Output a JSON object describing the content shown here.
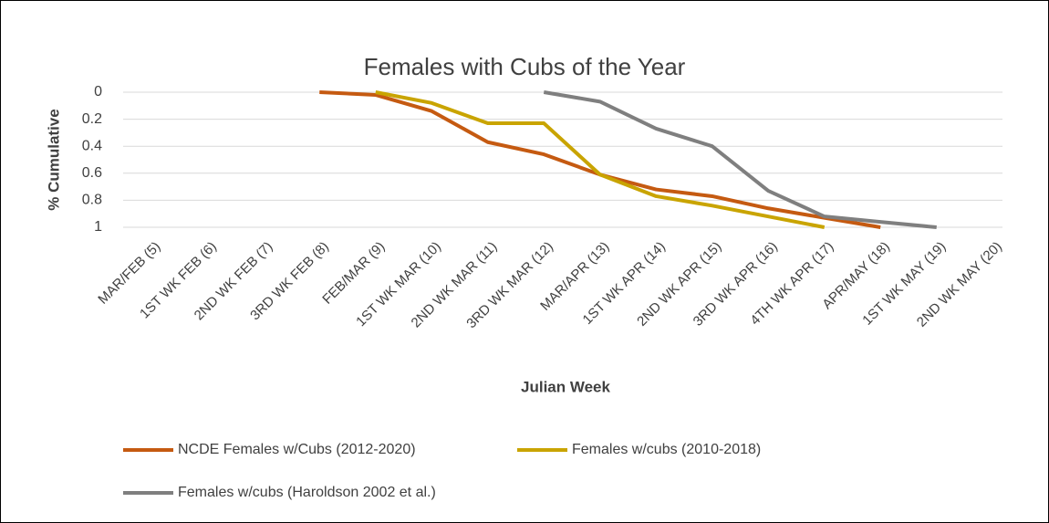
{
  "chart_data": {
    "type": "line",
    "title": "Females with Cubs of the Year",
    "y_label": "% Cumulative",
    "x_label": "Julian Week",
    "categories": [
      "MAR/FEB (5)",
      "1ST WK FEB (6)",
      "2ND WK FEB (7)",
      "3RD WK FEB (8)",
      "FEB/MAR (9)",
      "1ST WK MAR (10)",
      "2ND WK MAR (11)",
      "3RD WK MAR (12)",
      "MAR/APR (13)",
      "1ST WK APR (14)",
      "2ND WK APR (15)",
      "3RD WK APR (16)",
      "4TH WK APR (17)",
      "APR/MAY (18)",
      "1ST WK MAY (19)",
      "2ND WK MAY (20)"
    ],
    "series": [
      {
        "name": "NCDE Females w/Cubs (2012-2020)",
        "color": "#c55a11",
        "values": [
          null,
          null,
          null,
          0,
          0.02,
          0.14,
          0.37,
          0.46,
          0.61,
          0.72,
          0.77,
          0.86,
          0.93,
          1,
          null,
          null
        ]
      },
      {
        "name": "Females w/cubs (2010-2018)",
        "color": "#c9a400",
        "values": [
          null,
          null,
          null,
          null,
          0,
          0.08,
          0.23,
          0.23,
          0.61,
          0.77,
          0.84,
          0.92,
          1,
          null,
          null,
          null
        ]
      },
      {
        "name": "Females w/cubs (Haroldson 2002 et al.)",
        "color": "#7f7f7f",
        "values": [
          null,
          null,
          null,
          null,
          null,
          null,
          null,
          0,
          0.07,
          0.27,
          0.4,
          0.73,
          0.92,
          0.96,
          1,
          null
        ]
      }
    ],
    "ylim": [
      0,
      1
    ],
    "yticks": [
      0,
      0.2,
      0.4,
      0.6,
      0.8,
      1
    ],
    "y_reversed": true,
    "grid": true,
    "legend": "bottom"
  }
}
